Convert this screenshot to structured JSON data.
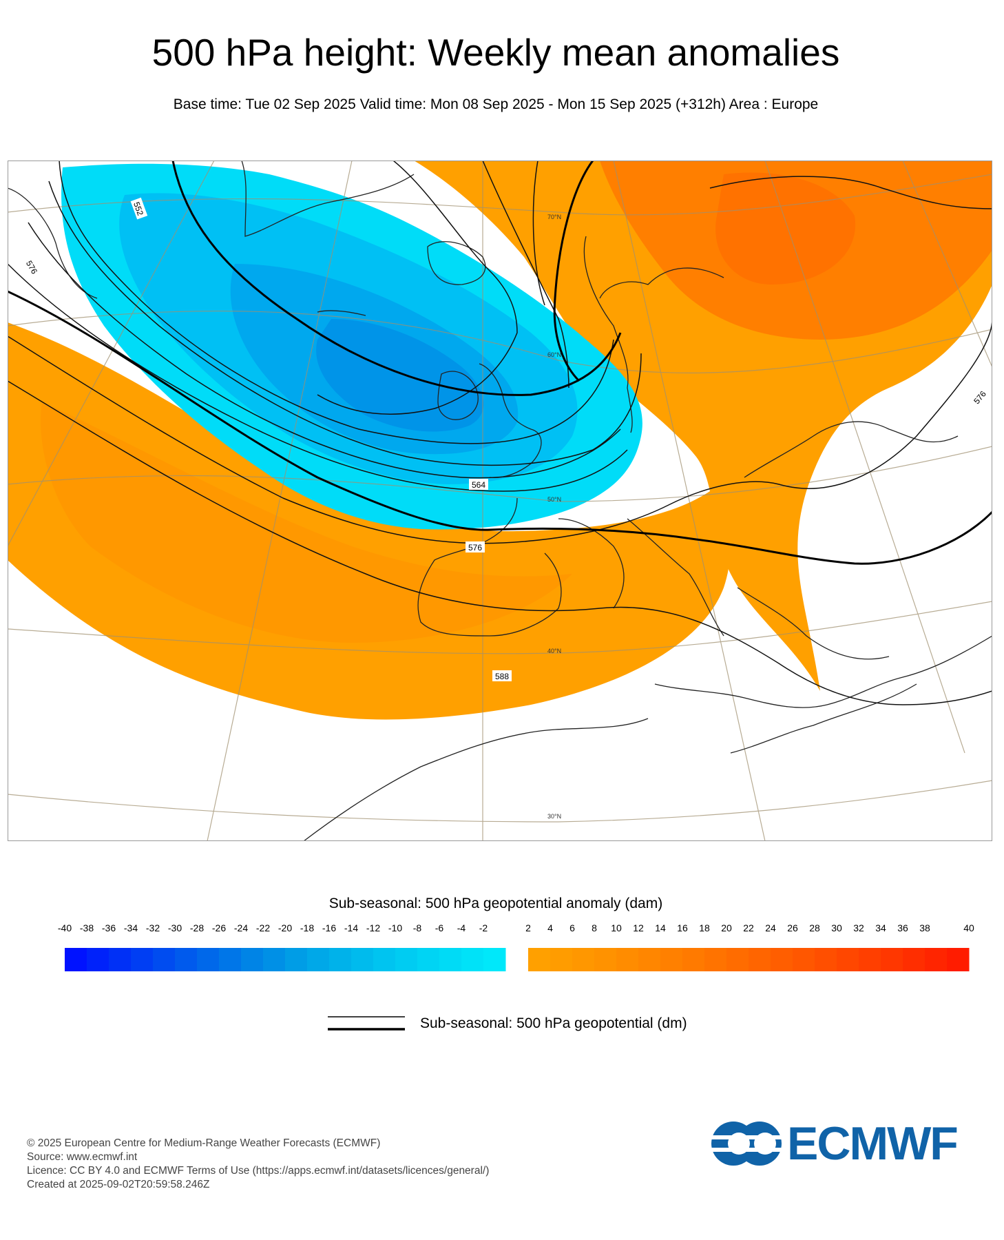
{
  "title": "500 hPa height: Weekly mean anomalies",
  "subtitle": "Base time: Tue 02 Sep 2025 Valid time: Mon 08 Sep 2025 - Mon 15 Sep 2025 (+312h) Area : Europe",
  "map": {
    "lat_labels": [
      "70°N",
      "60°N",
      "50°N",
      "40°N",
      "30°N"
    ],
    "contour_labels": [
      "552",
      "564",
      "576",
      "576",
      "576",
      "588"
    ],
    "colors": {
      "negative": "#00c8f5",
      "positive": "#ffa000",
      "strong_positive": "#ff7f00",
      "ocean": "#ffffff"
    }
  },
  "colorbar": {
    "title": "Sub-seasonal: 500 hPa geopotential anomaly (dam)",
    "negative_ticks": [
      "-40",
      "-38",
      "-36",
      "-34",
      "-32",
      "-30",
      "-28",
      "-26",
      "-24",
      "-22",
      "-20",
      "-18",
      "-16",
      "-14",
      "-12",
      "-10",
      "-8",
      "-6",
      "-4",
      "-2"
    ],
    "positive_ticks": [
      "2",
      "4",
      "6",
      "8",
      "10",
      "12",
      "14",
      "16",
      "18",
      "20",
      "22",
      "24",
      "26",
      "28",
      "30",
      "32",
      "34",
      "36",
      "38",
      "40"
    ],
    "negative_colors": [
      "#0012ff",
      "#0022fa",
      "#0030f6",
      "#003ef3",
      "#004cf0",
      "#005aed",
      "#0068ea",
      "#0076e8",
      "#0084e6",
      "#0090e6",
      "#009de6",
      "#00a8e8",
      "#00b2ea",
      "#00bbed",
      "#00c4f0",
      "#00ccf2",
      "#00d4f4",
      "#00dbf6",
      "#00e2f8",
      "#00e8fa"
    ],
    "positive_colors": [
      "#ffa000",
      "#ff9c00",
      "#ff9700",
      "#ff9200",
      "#ff8c00",
      "#ff8600",
      "#ff8000",
      "#ff7a00",
      "#ff7300",
      "#ff6c00",
      "#ff6500",
      "#ff5e00",
      "#ff5700",
      "#ff4f00",
      "#ff4700",
      "#ff3f00",
      "#ff3700",
      "#ff2e00",
      "#ff2500",
      "#ff1c00"
    ]
  },
  "line_legend": {
    "label": "Sub-seasonal: 500 hPa geopotential (dm)"
  },
  "footer": [
    "© 2025 European Centre for Medium-Range Weather Forecasts (ECMWF)",
    "Source: www.ecmwf.int",
    "Licence: CC BY 4.0 and ECMWF Terms of Use (https://apps.ecmwf.int/datasets/licences/general/)",
    "Created at 2025-09-02T20:59:58.246Z"
  ],
  "logo": {
    "text": "ECMWF",
    "color": "#1063a8"
  }
}
